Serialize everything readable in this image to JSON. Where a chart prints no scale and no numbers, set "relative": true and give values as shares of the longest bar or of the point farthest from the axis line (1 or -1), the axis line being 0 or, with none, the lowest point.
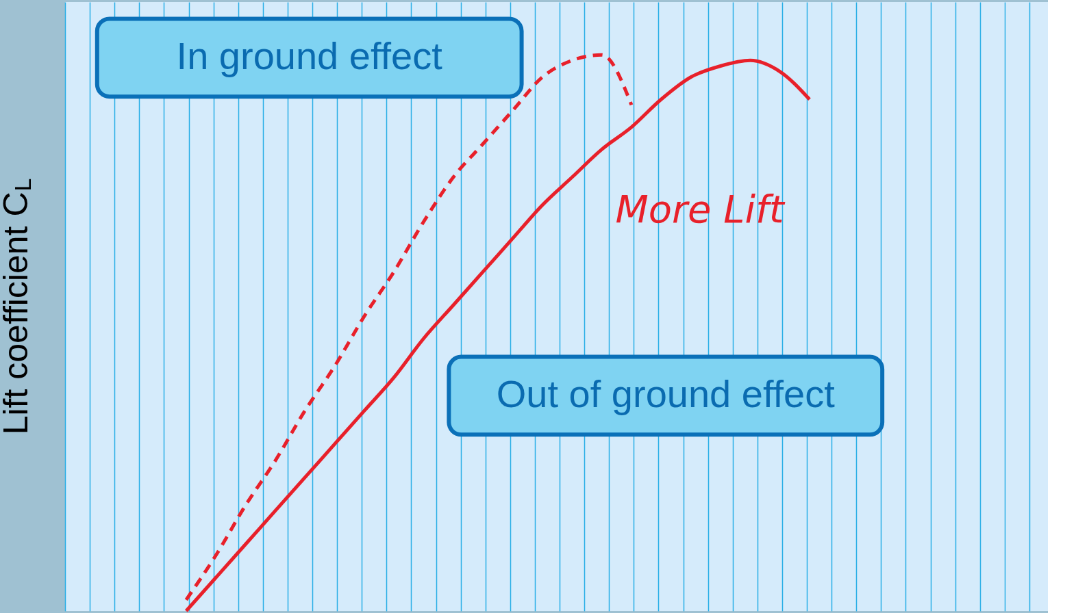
{
  "chart_data": {
    "type": "line",
    "relative": true,
    "ylabel": "Lift coefficient C$_{L}$",
    "grid": "x",
    "categories": [
      null,
      null,
      null,
      null,
      null,
      null,
      null,
      null,
      null,
      null,
      null,
      null,
      null,
      null,
      null,
      null,
      null,
      null,
      null,
      null,
      null,
      null
    ],
    "series": [
      {
        "name": "Out of ground effect",
        "color": "#e8202a",
        "line_style": "solid",
        "values": [
          0,
          0.06,
          0.12,
          0.18,
          0.24,
          0.3,
          0.36,
          0.42,
          0.49,
          0.55,
          0.61,
          0.67,
          0.73,
          0.78,
          0.83,
          0.87,
          0.92,
          0.96,
          0.98,
          0.99,
          0.97,
          0.92
        ]
      },
      {
        "name": "In ground effect",
        "color": "#e8202a",
        "line_style": "dashed",
        "values": [
          0.02,
          0.1,
          0.19,
          0.27,
          0.36,
          0.44,
          0.53,
          0.61,
          0.7,
          0.78,
          0.84,
          0.9,
          0.96,
          0.99,
          1.0,
          0.91,
          null,
          null,
          null,
          null,
          null,
          null
        ]
      }
    ],
    "annotations": [
      "More Lift"
    ]
  }
}
